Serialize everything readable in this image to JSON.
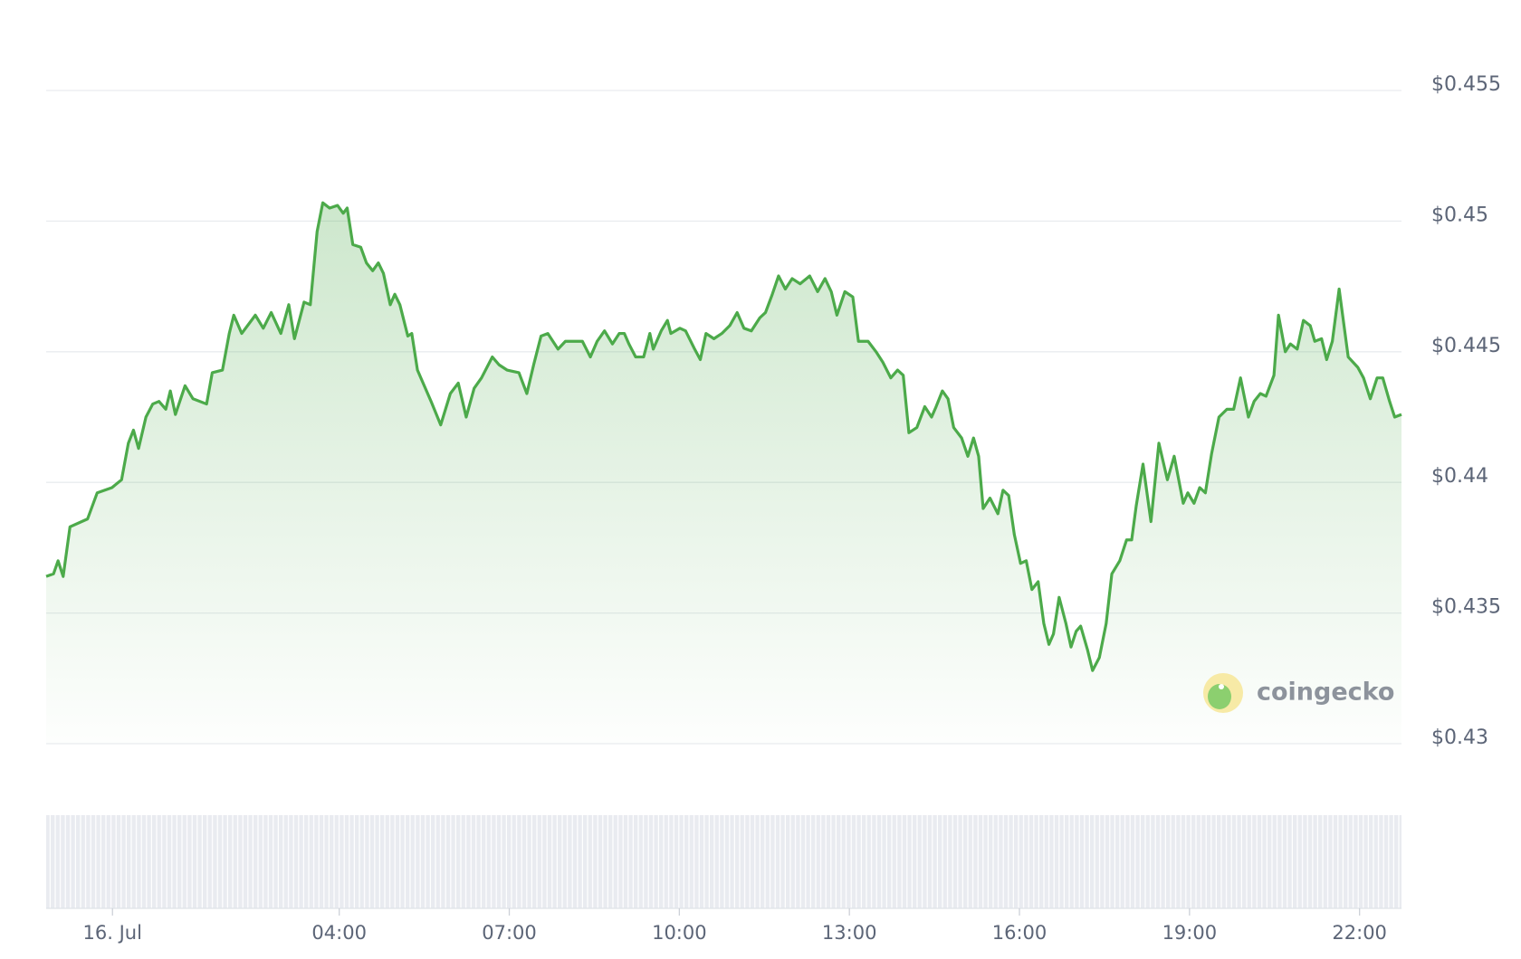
{
  "chart_data": {
    "type": "line",
    "color": "#4caa4a",
    "grid": true,
    "logo_text": "coingecko",
    "xlim": [
      -1.17,
      22.74
    ],
    "ylim": [
      0.43,
      0.455
    ],
    "xticks": [
      {
        "value": 0,
        "label": "16. Jul"
      },
      {
        "value": 4,
        "label": "04:00"
      },
      {
        "value": 7,
        "label": "07:00"
      },
      {
        "value": 10,
        "label": "10:00"
      },
      {
        "value": 13,
        "label": "13:00"
      },
      {
        "value": 16,
        "label": "16:00"
      },
      {
        "value": 19,
        "label": "19:00"
      },
      {
        "value": 22,
        "label": "22:00"
      }
    ],
    "yticks": [
      {
        "value": 0.43,
        "label": "$0.43"
      },
      {
        "value": 0.435,
        "label": "$0.435"
      },
      {
        "value": 0.44,
        "label": "$0.44"
      },
      {
        "value": 0.445,
        "label": "$0.445"
      },
      {
        "value": 0.45,
        "label": "$0.45"
      },
      {
        "value": 0.455,
        "label": "$0.455"
      }
    ],
    "x": [
      -1.17,
      -1.04,
      -0.96,
      -0.87,
      -0.75,
      -0.44,
      -0.27,
      -0.01,
      0.16,
      0.28,
      0.37,
      0.46,
      0.59,
      0.71,
      0.82,
      0.94,
      1.02,
      1.11,
      1.28,
      1.42,
      1.66,
      1.76,
      1.94,
      2.06,
      2.14,
      2.28,
      2.52,
      2.66,
      2.8,
      2.97,
      3.11,
      3.21,
      3.38,
      3.49,
      3.61,
      3.71,
      3.83,
      3.97,
      4.07,
      4.14,
      4.24,
      4.38,
      4.48,
      4.59,
      4.69,
      4.78,
      4.9,
      4.98,
      5.07,
      5.21,
      5.28,
      5.38,
      5.48,
      5.62,
      5.79,
      5.96,
      6.1,
      6.24,
      6.38,
      6.51,
      6.7,
      6.82,
      6.96,
      7.17,
      7.31,
      7.43,
      7.56,
      7.68,
      7.86,
      7.99,
      8.17,
      8.29,
      8.43,
      8.55,
      8.68,
      8.82,
      8.94,
      9.03,
      9.11,
      9.23,
      9.37,
      9.48,
      9.54,
      9.68,
      9.79,
      9.85,
      10.01,
      10.11,
      10.27,
      10.37,
      10.47,
      10.61,
      10.75,
      10.89,
      11.02,
      11.14,
      11.27,
      11.42,
      11.52,
      11.64,
      11.75,
      11.87,
      11.99,
      12.13,
      12.3,
      12.44,
      12.57,
      12.68,
      12.78,
      12.92,
      13.06,
      13.16,
      13.33,
      13.47,
      13.59,
      13.73,
      13.85,
      13.95,
      14.05,
      14.19,
      14.33,
      14.45,
      14.53,
      14.64,
      14.74,
      14.84,
      14.98,
      15.09,
      15.19,
      15.28,
      15.36,
      15.48,
      15.62,
      15.71,
      15.81,
      15.91,
      16.02,
      16.12,
      16.22,
      16.33,
      16.43,
      16.52,
      16.6,
      16.7,
      16.82,
      16.91,
      17.0,
      17.08,
      17.2,
      17.29,
      17.41,
      17.53,
      17.63,
      17.77,
      17.89,
      17.98,
      18.06,
      18.18,
      18.32,
      18.46,
      18.61,
      18.73,
      18.89,
      18.97,
      19.08,
      19.18,
      19.28,
      19.39,
      19.52,
      19.66,
      19.78,
      19.9,
      20.04,
      20.14,
      20.25,
      20.35,
      20.49,
      20.57,
      20.69,
      20.78,
      20.9,
      21.01,
      21.13,
      21.21,
      21.33,
      21.42,
      21.52,
      21.64,
      21.8,
      21.97,
      22.07,
      22.19,
      22.31,
      22.41,
      22.53,
      22.62,
      22.74
    ],
    "values": [
      0.4364,
      0.4365,
      0.437,
      0.4364,
      0.4383,
      0.4386,
      0.4396,
      0.4398,
      0.4401,
      0.4415,
      0.442,
      0.4413,
      0.4425,
      0.443,
      0.4431,
      0.4428,
      0.4435,
      0.4426,
      0.4437,
      0.4432,
      0.443,
      0.4442,
      0.4443,
      0.4457,
      0.4464,
      0.4457,
      0.4464,
      0.4459,
      0.4465,
      0.4457,
      0.4468,
      0.4455,
      0.4469,
      0.4468,
      0.4496,
      0.4507,
      0.4505,
      0.4506,
      0.4503,
      0.4505,
      0.4491,
      0.449,
      0.4484,
      0.4481,
      0.4484,
      0.448,
      0.4468,
      0.4472,
      0.4468,
      0.4456,
      0.4457,
      0.4443,
      0.4438,
      0.4431,
      0.4422,
      0.4434,
      0.4438,
      0.4425,
      0.4436,
      0.444,
      0.4448,
      0.4445,
      0.4443,
      0.4442,
      0.4434,
      0.4445,
      0.4456,
      0.4457,
      0.4451,
      0.4454,
      0.4454,
      0.4454,
      0.4448,
      0.4454,
      0.4458,
      0.4453,
      0.4457,
      0.4457,
      0.4453,
      0.4448,
      0.4448,
      0.4457,
      0.4451,
      0.4458,
      0.4462,
      0.4457,
      0.4459,
      0.4458,
      0.4451,
      0.4447,
      0.4457,
      0.4455,
      0.4457,
      0.446,
      0.4465,
      0.4459,
      0.4458,
      0.4463,
      0.4465,
      0.4472,
      0.4479,
      0.4474,
      0.4478,
      0.4476,
      0.4479,
      0.4473,
      0.4478,
      0.4473,
      0.4464,
      0.4473,
      0.4471,
      0.4454,
      0.4454,
      0.445,
      0.4446,
      0.444,
      0.4443,
      0.4441,
      0.4419,
      0.4421,
      0.4429,
      0.4425,
      0.4429,
      0.4435,
      0.4432,
      0.4421,
      0.4417,
      0.441,
      0.4417,
      0.441,
      0.439,
      0.4394,
      0.4388,
      0.4397,
      0.4395,
      0.438,
      0.4369,
      0.437,
      0.4359,
      0.4362,
      0.4346,
      0.4338,
      0.4342,
      0.4356,
      0.4346,
      0.4337,
      0.4343,
      0.4345,
      0.4336,
      0.4328,
      0.4333,
      0.4346,
      0.4365,
      0.437,
      0.4378,
      0.4378,
      0.4391,
      0.4407,
      0.4385,
      0.4415,
      0.4401,
      0.441,
      0.4392,
      0.4396,
      0.4392,
      0.4398,
      0.4396,
      0.4411,
      0.4425,
      0.4428,
      0.4428,
      0.444,
      0.4425,
      0.4431,
      0.4434,
      0.4433,
      0.4441,
      0.4464,
      0.445,
      0.4453,
      0.4451,
      0.4462,
      0.446,
      0.4454,
      0.4455,
      0.4447,
      0.4454,
      0.4474,
      0.4448,
      0.4444,
      0.444,
      0.4432,
      0.444,
      0.444,
      0.4431,
      0.4425,
      0.4426
    ]
  }
}
